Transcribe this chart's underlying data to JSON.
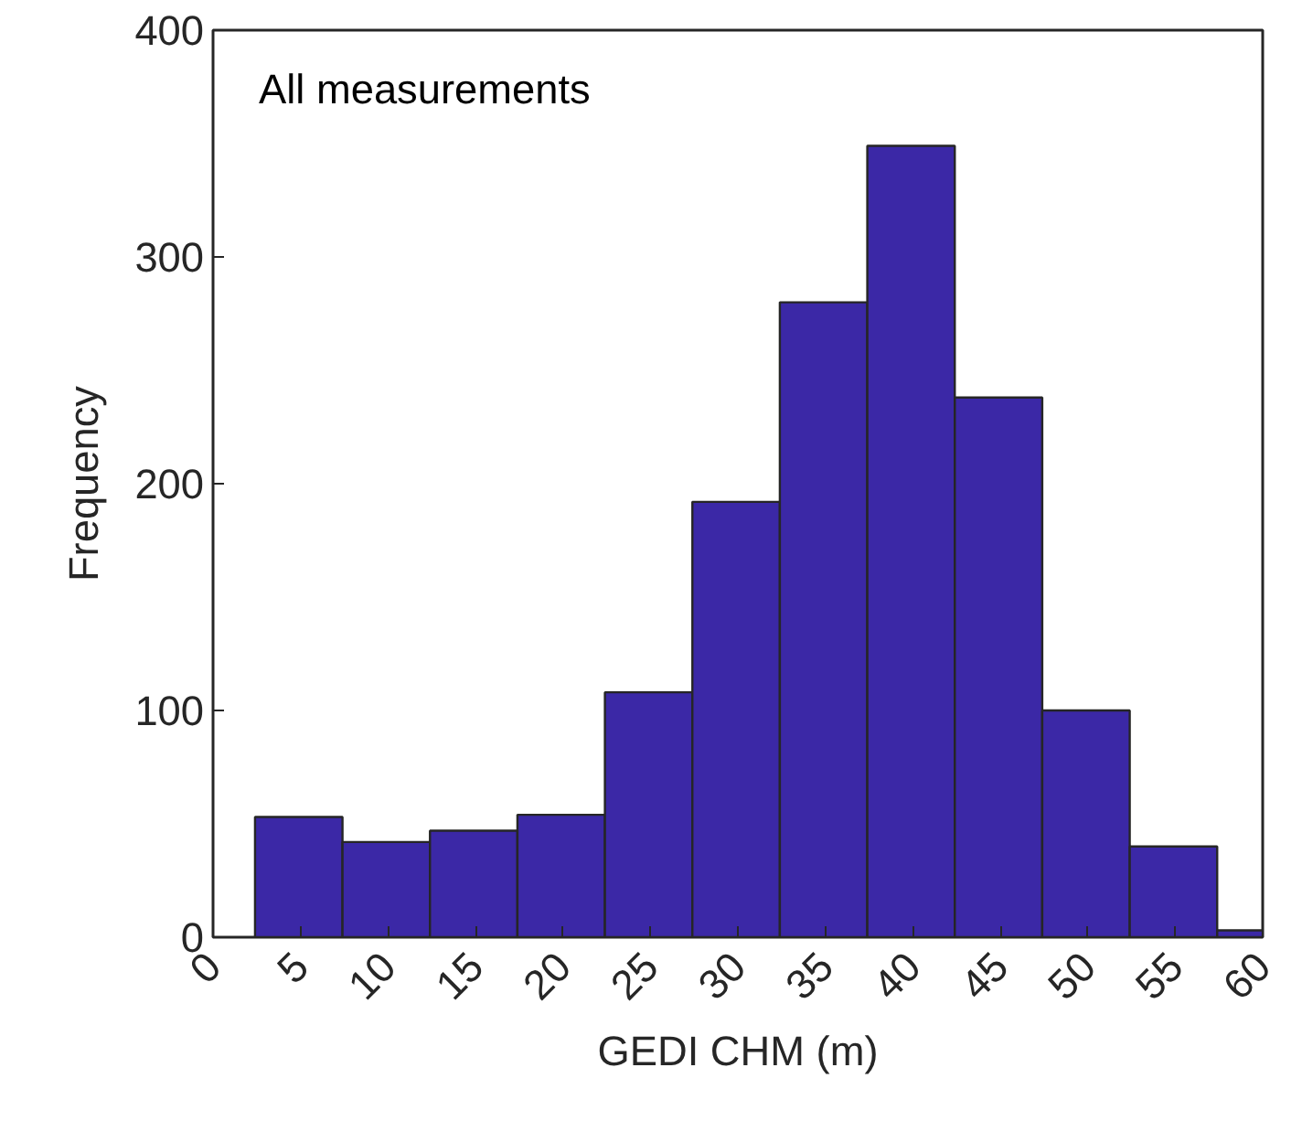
{
  "chart_data": {
    "type": "histogram",
    "xlabel": "GEDI CHM (m)",
    "ylabel": "Frequency",
    "annotations": [
      "All measurements"
    ],
    "bins": [
      2.4,
      7.4,
      12.4,
      17.4,
      22.4,
      27.4,
      32.4,
      37.4,
      42.4,
      47.4,
      52.4,
      57.4,
      60
    ],
    "values": [
      53,
      42,
      47,
      54,
      108,
      192,
      280,
      349,
      238,
      100,
      40,
      3
    ],
    "color": "#3b28a6",
    "xlim": [
      0,
      60
    ],
    "xticks": [
      0,
      5,
      10,
      15,
      20,
      25,
      30,
      35,
      40,
      45,
      50,
      55,
      60
    ],
    "ylim": [
      0,
      400
    ],
    "yticks": [
      0,
      100,
      200,
      300,
      400
    ],
    "grid": false
  }
}
